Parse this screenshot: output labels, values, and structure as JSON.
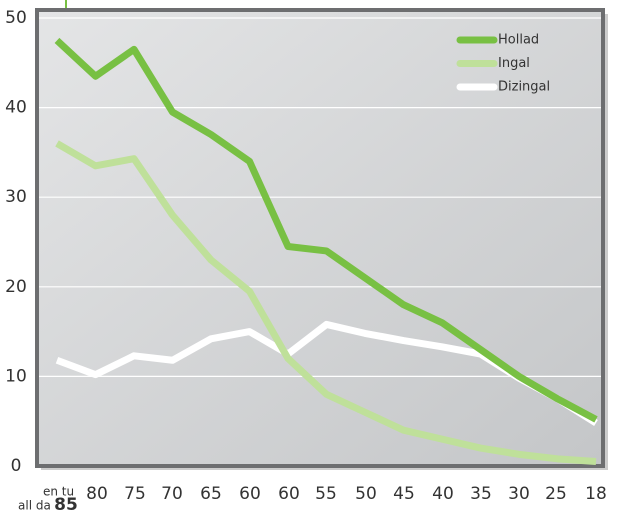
{
  "chart_data": {
    "type": "line",
    "categories": [
      "85",
      "80",
      "75",
      "70",
      "65",
      "60",
      "60",
      "55",
      "50",
      "45",
      "40",
      "35",
      "30",
      "25",
      "18"
    ],
    "category_prefix": [
      "en tu",
      "all da"
    ],
    "series": [
      {
        "name": "Hollad",
        "color": "#78c043",
        "values": [
          47.5,
          43.5,
          46.5,
          39.5,
          37,
          34,
          24.5,
          24,
          21,
          18,
          16,
          13,
          10,
          7.5,
          5.2
        ]
      },
      {
        "name": "Ingal",
        "color": "#bfe09a",
        "values": [
          36,
          33.5,
          34.3,
          28,
          23,
          19.5,
          12,
          8,
          6,
          4,
          3,
          2,
          1.3,
          0.8,
          0.5
        ]
      },
      {
        "name": "Dizingal",
        "color": "#ffffff",
        "values": [
          11.8,
          10.2,
          12.3,
          11.8,
          14.2,
          15,
          12.5,
          15.8,
          14.8,
          14,
          13.3,
          12.5,
          9.8,
          7.5,
          4.8
        ]
      }
    ],
    "ylim": [
      0,
      50
    ],
    "yticks": [
      0,
      10,
      20,
      30,
      40,
      50
    ],
    "grid": true,
    "legend": "upper right"
  }
}
